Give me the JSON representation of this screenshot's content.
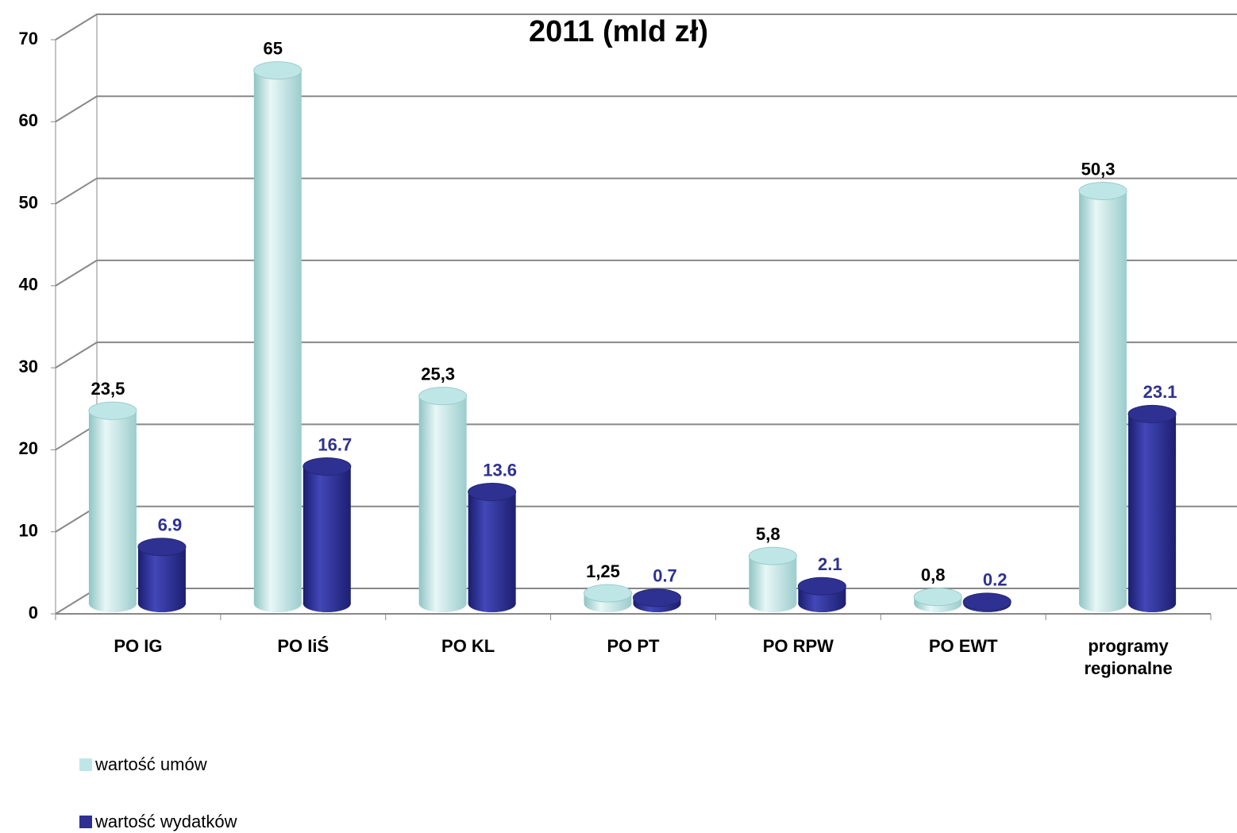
{
  "chart_data": {
    "type": "bar3d",
    "title": "2011 (mld zł)",
    "categories": [
      "PO IG",
      "PO IiŚ",
      "PO KL",
      "PO PT",
      "PO RPW",
      "PO EWT",
      "programy regionalne"
    ],
    "series": [
      {
        "name": "wartość umów",
        "color": "#bfe6e6",
        "values": [
          23.5,
          65,
          25.3,
          1.25,
          5.8,
          0.8,
          50.3
        ],
        "value_labels": [
          "23,5",
          "65",
          "25,3",
          "1,25",
          "5,8",
          "0,8",
          "50,3"
        ],
        "label_color": "#000000"
      },
      {
        "name": "wartość wydatków",
        "color": "#2e3192",
        "values": [
          6.9,
          16.7,
          13.6,
          0.7,
          2.1,
          0.2,
          23.1
        ],
        "label_color": "#2e3192"
      }
    ],
    "ylim": [
      0,
      70
    ],
    "yticks": [
      0,
      10,
      20,
      30,
      40,
      50,
      60,
      70
    ],
    "grid": true,
    "legend": "bottom-left"
  }
}
